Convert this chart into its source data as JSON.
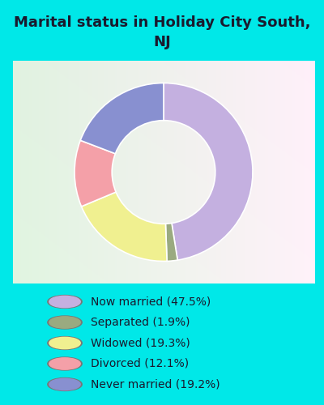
{
  "title": "Marital status in Holiday City South,\nNJ",
  "slices": [
    47.5,
    1.9,
    19.3,
    12.1,
    19.2
  ],
  "colors": [
    "#c4b0e0",
    "#9aaa80",
    "#f0f090",
    "#f4a0a8",
    "#8890d0"
  ],
  "labels": [
    "Now married (47.5%)",
    "Separated (1.9%)",
    "Widowed (19.3%)",
    "Divorced (12.1%)",
    "Never married (19.2%)"
  ],
  "legend_colors": [
    "#c4b0e0",
    "#9aaa80",
    "#f0f090",
    "#f4a0a8",
    "#8890d0"
  ],
  "background_color": "#00e8e8",
  "title_fontsize": 13,
  "legend_fontsize": 10,
  "donut_width": 0.42,
  "startangle": 90
}
